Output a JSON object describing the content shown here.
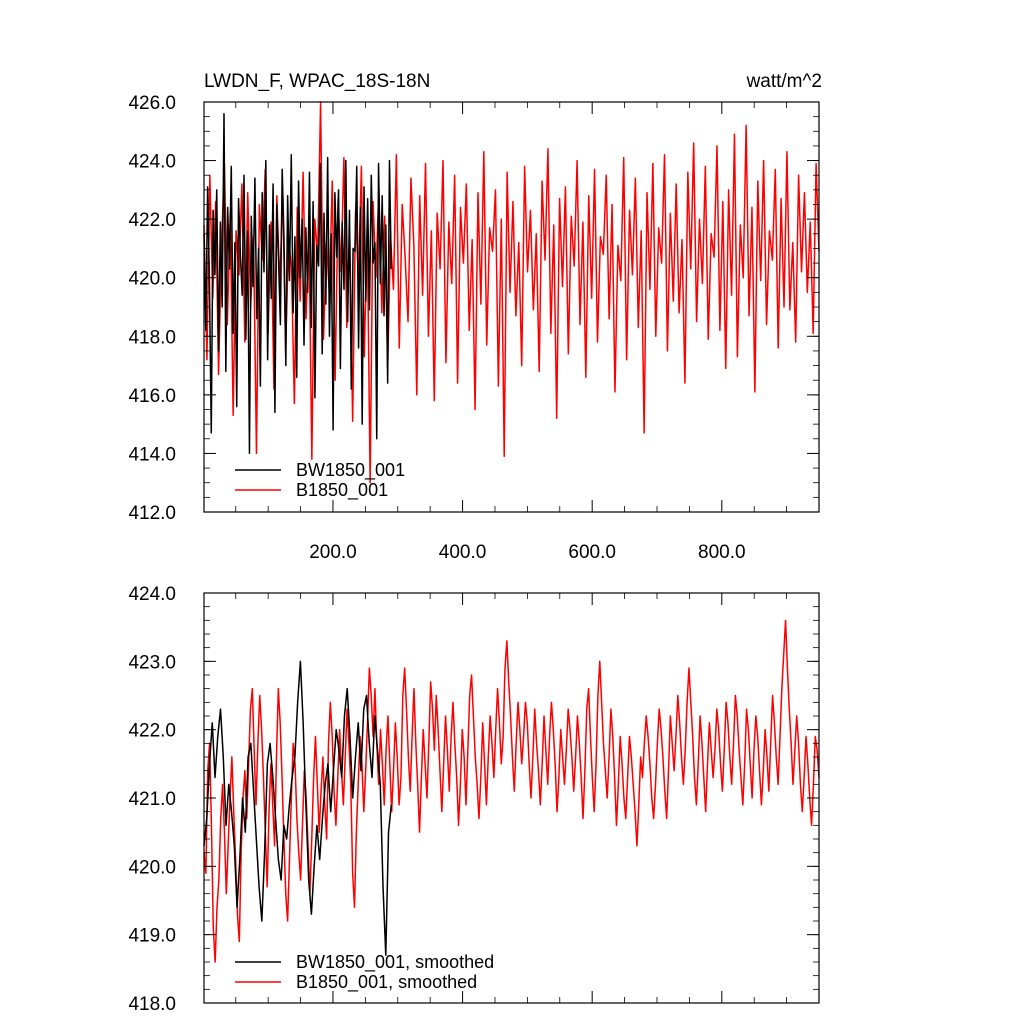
{
  "chart_data": [
    {
      "type": "line",
      "title": "LWDN_F, WPAC_18S-18N",
      "units": "watt/m^2",
      "xlim": [
        1,
        950
      ],
      "ylim": [
        412,
        426
      ],
      "x_ticks": [
        200,
        400,
        600,
        800
      ],
      "x_tick_labels": [
        "200.0",
        "400.0",
        "600.0",
        "800.0"
      ],
      "y_ticks": [
        412,
        414,
        416,
        418,
        420,
        422,
        424,
        426
      ],
      "y_tick_labels": [
        "412.0",
        "414.0",
        "416.0",
        "418.0",
        "420.0",
        "422.0",
        "424.0",
        "426.0"
      ],
      "legend": {
        "position": "bottom-left",
        "entries": [
          "BW1850_001",
          "B1850_001"
        ]
      },
      "series": [
        {
          "name": "BW1850_001",
          "color": "#000000",
          "x_range": [
            1,
            290
          ],
          "values": [
            421.5,
            418.2,
            423.1,
            419.8,
            414.7,
            422.3,
            420.1,
            423.0,
            417.5,
            421.9,
            419.0,
            425.6,
            416.8,
            422.4,
            420.3,
            423.8,
            418.1,
            421.2,
            415.6,
            422.7,
            420.8,
            419.4,
            423.5,
            417.9,
            421.6,
            414.0,
            422.1,
            419.7,
            423.4,
            418.6,
            421.0,
            416.3,
            422.9,
            420.2,
            424.0,
            417.2,
            421.8,
            419.3,
            423.2,
            415.4,
            422.5,
            420.6,
            418.4,
            423.7,
            421.3,
            417.0,
            422.8,
            419.9,
            424.2,
            418.8,
            421.4,
            416.6,
            423.3,
            420.0,
            422.0,
            417.7,
            421.7,
            419.5,
            423.6,
            418.3,
            422.6,
            415.9,
            421.1,
            420.4,
            423.9,
            417.4,
            422.2,
            419.1,
            424.1,
            418.0,
            421.5,
            414.8,
            422.9,
            420.7,
            423.0,
            416.9,
            421.9,
            419.6,
            424.0,
            418.5,
            422.3,
            416.2,
            421.0,
            420.9,
            423.8,
            417.6,
            422.4,
            415.0,
            423.1,
            419.2,
            422.7,
            418.9,
            423.5,
            420.5,
            421.2,
            414.5,
            423.9,
            419.8,
            422.8,
            418.7,
            421.8,
            416.4,
            424.0,
            420.3
          ]
        },
        {
          "name": "B1850_001",
          "color": "#ff0000",
          "x_range": [
            1,
            950
          ],
          "values": [
            421.8,
            417.2,
            423.5,
            419.3,
            422.6,
            416.7,
            421.0,
            423.9,
            418.4,
            422.2,
            415.3,
            421.6,
            420.1,
            423.2,
            417.8,
            422.9,
            419.0,
            421.4,
            414.0,
            422.5,
            420.6,
            423.7,
            418.1,
            421.9,
            416.2,
            422.8,
            419.7,
            423.0,
            417.5,
            421.3,
            420.4,
            415.7,
            422.4,
            419.2,
            423.6,
            418.6,
            421.7,
            413.8,
            422.0,
            420.8,
            426.0,
            417.9,
            421.2,
            419.5,
            423.3,
            416.5,
            422.7,
            420.2,
            424.1,
            418.3,
            421.5,
            415.1,
            422.3,
            419.9,
            423.8,
            417.3,
            421.8,
            413.0,
            422.6,
            420.0,
            423.1,
            418.8,
            422.1,
            416.9,
            421.4,
            419.6,
            424.2,
            417.6,
            422.5,
            420.7,
            418.5,
            423.4,
            421.1,
            416.0,
            422.8,
            419.4,
            423.9,
            418.0,
            421.6,
            415.8,
            422.2,
            420.3,
            424.0,
            417.1,
            421.9,
            419.8,
            423.5,
            416.4,
            422.4,
            420.5,
            423.2,
            418.2,
            421.3,
            415.5,
            422.9,
            419.1,
            424.3,
            417.7,
            421.7,
            420.9,
            423.0,
            416.3,
            422.0,
            413.9,
            423.6,
            419.5,
            422.6,
            418.7,
            421.2,
            417.0,
            423.8,
            420.2,
            422.3,
            418.9,
            421.5,
            416.8,
            423.3,
            420.6,
            424.4,
            418.1,
            421.8,
            415.2,
            422.7,
            419.7,
            423.1,
            417.4,
            422.1,
            420.4,
            424.0,
            418.4,
            421.9,
            416.6,
            422.8,
            419.3,
            423.7,
            417.8,
            421.4,
            420.8,
            423.5,
            418.6,
            422.5,
            416.1,
            421.1,
            419.9,
            424.1,
            417.2,
            422.3,
            420.1,
            423.4,
            418.3,
            421.6,
            414.7,
            422.9,
            419.6,
            423.9,
            418.0,
            421.7,
            420.5,
            424.2,
            417.5,
            422.2,
            419.2,
            423.2,
            418.8,
            421.3,
            416.4,
            423.6,
            420.3,
            424.6,
            418.5,
            422.0,
            419.8,
            423.8,
            417.9,
            421.5,
            420.7,
            424.5,
            418.2,
            422.6,
            416.9,
            423.0,
            419.4,
            424.9,
            417.3,
            421.8,
            420.0,
            425.2,
            418.7,
            422.4,
            416.1,
            423.3,
            419.9,
            424.0,
            418.4,
            421.6,
            420.6,
            423.7,
            417.6,
            422.7,
            419.0,
            424.3,
            418.9,
            421.2,
            417.8,
            423.5,
            420.2,
            422.9,
            419.5,
            421.9,
            418.1,
            423.9,
            420.9
          ]
        }
      ]
    },
    {
      "type": "line",
      "xlim": [
        1,
        950
      ],
      "ylim": [
        418,
        424
      ],
      "x_ticks": [
        200,
        400,
        600,
        800
      ],
      "y_ticks": [
        418,
        419,
        420,
        421,
        422,
        423,
        424
      ],
      "y_tick_labels": [
        "418.0",
        "419.0",
        "420.0",
        "421.0",
        "422.0",
        "423.0",
        "424.0"
      ],
      "legend": {
        "position": "bottom-left",
        "entries": [
          "BW1850_001, smoothed",
          "B1850_001, smoothed"
        ]
      },
      "series": [
        {
          "name": "BW1850_001, smoothed",
          "color": "#000000",
          "x_range": [
            1,
            290
          ],
          "values": [
            420.3,
            420.7,
            421.5,
            422.1,
            421.3,
            421.9,
            422.3,
            421.6,
            420.6,
            421.2,
            420.8,
            420.3,
            419.4,
            420.1,
            421.0,
            420.5,
            421.6,
            421.8,
            421.1,
            420.4,
            419.7,
            419.2,
            420.2,
            421.5,
            421.8,
            421.3,
            420.7,
            420.1,
            419.8,
            420.6,
            420.4,
            420.9,
            421.3,
            421.6,
            422.4,
            423.0,
            422.1,
            420.9,
            419.8,
            419.3,
            420.0,
            420.6,
            420.1,
            420.7,
            421.2,
            421.5,
            420.8,
            421.4,
            422.0,
            421.7,
            421.3,
            422.2,
            422.6,
            421.9,
            421.0,
            421.6,
            422.1,
            421.4,
            422.3,
            422.5,
            421.8,
            421.3,
            422.2,
            421.7,
            421.2,
            419.7,
            418.7,
            420.5,
            420.9
          ]
        },
        {
          "name": "B1850_001, smoothed",
          "color": "#ff0000",
          "x_range": [
            1,
            950
          ],
          "values": [
            420.2,
            419.9,
            421.4,
            421.8,
            420.6,
            419.1,
            418.6,
            419.4,
            419.8,
            420.7,
            421.2,
            420.5,
            419.6,
            420.3,
            421.0,
            421.6,
            420.8,
            420.1,
            419.3,
            418.9,
            420.2,
            421.0,
            421.4,
            420.7,
            421.5,
            422.3,
            422.6,
            421.7,
            420.9,
            421.8,
            422.5,
            422.0,
            421.3,
            420.5,
            419.7,
            420.8,
            421.5,
            420.9,
            420.3,
            421.6,
            422.6,
            422.1,
            421.3,
            420.4,
            419.6,
            419.2,
            420.1,
            421.0,
            421.8,
            421.5,
            420.7,
            420.2,
            419.8,
            420.6,
            421.4,
            421.0,
            420.3,
            419.6,
            420.4,
            421.3,
            421.9,
            421.2,
            420.5,
            421.1,
            421.6,
            420.9,
            420.4,
            421.8,
            422.4,
            421.9,
            421.1,
            420.6,
            421.3,
            422.0,
            421.4,
            420.9,
            421.6,
            422.3,
            421.8,
            421.2,
            419.9,
            419.4,
            420.5,
            421.2,
            421.9,
            421.5,
            420.8,
            421.4,
            422.1,
            422.9,
            422.5,
            421.9,
            422.6,
            421.8,
            421.2,
            422.0,
            421.5,
            420.9,
            421.7,
            422.2,
            421.5,
            420.8,
            421.4,
            422.1,
            421.6,
            420.9,
            421.3,
            422.5,
            422.9,
            422.3,
            421.6,
            421.1,
            421.9,
            422.6,
            421.8,
            421.2,
            420.5,
            421.3,
            422.0,
            421.5,
            421.0,
            421.8,
            422.7,
            422.3,
            421.7,
            422.5,
            422.0,
            421.4,
            420.8,
            421.5,
            422.2,
            421.7,
            421.1,
            421.9,
            422.4,
            421.8,
            421.3,
            420.6,
            421.2,
            422.0,
            421.6,
            420.9,
            421.7,
            422.5,
            422.8,
            422.2,
            421.6,
            421.2,
            420.7,
            421.3,
            422.1,
            421.5,
            420.9,
            421.6,
            422.2,
            421.8,
            421.3,
            422.0,
            422.6,
            422.1,
            421.5,
            421.9,
            422.9,
            423.3,
            422.7,
            422.2,
            421.6,
            421.1,
            421.8,
            422.4,
            422.0,
            421.5,
            421.9,
            422.4,
            422.1,
            421.5,
            421.0,
            421.6,
            422.3,
            421.8,
            421.4,
            420.9,
            421.5,
            422.2,
            421.7,
            421.2,
            421.9,
            422.4,
            422.0,
            421.5,
            420.8,
            421.3,
            422.0,
            421.6,
            421.2,
            421.7,
            422.3,
            422.0,
            421.6,
            421.1,
            421.6,
            422.2,
            421.8,
            421.3,
            420.7,
            421.4,
            422.3,
            422.6,
            421.9,
            421.3,
            420.8,
            421.5,
            422.5,
            423.0,
            422.4,
            421.8,
            421.4,
            421.0,
            421.6,
            422.3,
            421.9,
            421.3,
            420.6,
            421.2,
            421.9,
            421.5,
            421.0,
            420.7,
            421.3,
            421.9,
            421.6,
            421.2,
            420.8,
            420.3,
            420.9,
            421.6,
            421.3,
            421.8,
            422.2,
            421.9,
            421.5,
            421.0,
            420.7,
            421.2,
            421.8,
            422.3,
            422.0,
            421.6,
            421.1,
            420.7,
            421.4,
            422.2,
            421.8,
            421.4,
            421.9,
            422.5,
            422.1,
            421.6,
            421.2,
            421.7,
            422.4,
            422.9,
            422.4,
            421.9,
            421.3,
            420.9,
            421.5,
            422.2,
            421.8,
            421.3,
            420.8,
            421.5,
            422.1,
            421.7,
            421.3,
            421.7,
            422.3,
            422.0,
            421.5,
            421.1,
            421.7,
            422.4,
            422.1,
            421.6,
            421.2,
            421.8,
            422.5,
            422.2,
            421.7,
            421.3,
            420.9,
            421.5,
            422.3,
            422.0,
            421.5,
            421.0,
            421.7,
            422.2,
            421.9,
            421.4,
            420.9,
            421.4,
            422.0,
            421.6,
            421.1,
            421.8,
            422.5,
            422.1,
            421.6,
            421.2,
            421.9,
            422.6,
            423.1,
            423.6,
            422.9,
            422.3,
            421.8,
            421.2,
            421.7,
            422.2,
            421.8,
            421.2,
            420.8,
            421.3,
            421.9,
            421.5,
            421.0,
            420.6,
            421.2,
            421.9,
            421.7,
            421.3
          ]
        }
      ]
    }
  ]
}
